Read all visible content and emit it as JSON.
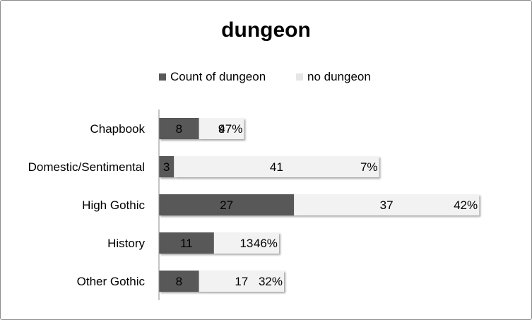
{
  "chart_data": {
    "type": "bar",
    "orientation": "horizontal",
    "stacked": true,
    "title": "dungeon",
    "categories": [
      "Chapbook",
      "Domestic/Sentimental",
      "High Gothic",
      "History",
      "Other Gothic"
    ],
    "series": [
      {
        "name": "Count of dungeon",
        "values": [
          8,
          3,
          27,
          11,
          8
        ],
        "color": "#595959"
      },
      {
        "name": "no dungeon",
        "values": [
          9,
          41,
          37,
          13,
          17
        ],
        "color": "#f2f2f2"
      }
    ],
    "percent_labels": [
      "47%",
      "7%",
      "42%",
      "46%",
      "32%"
    ],
    "xlim": [
      0,
      70
    ],
    "legend_position": "top",
    "grid": false
  }
}
